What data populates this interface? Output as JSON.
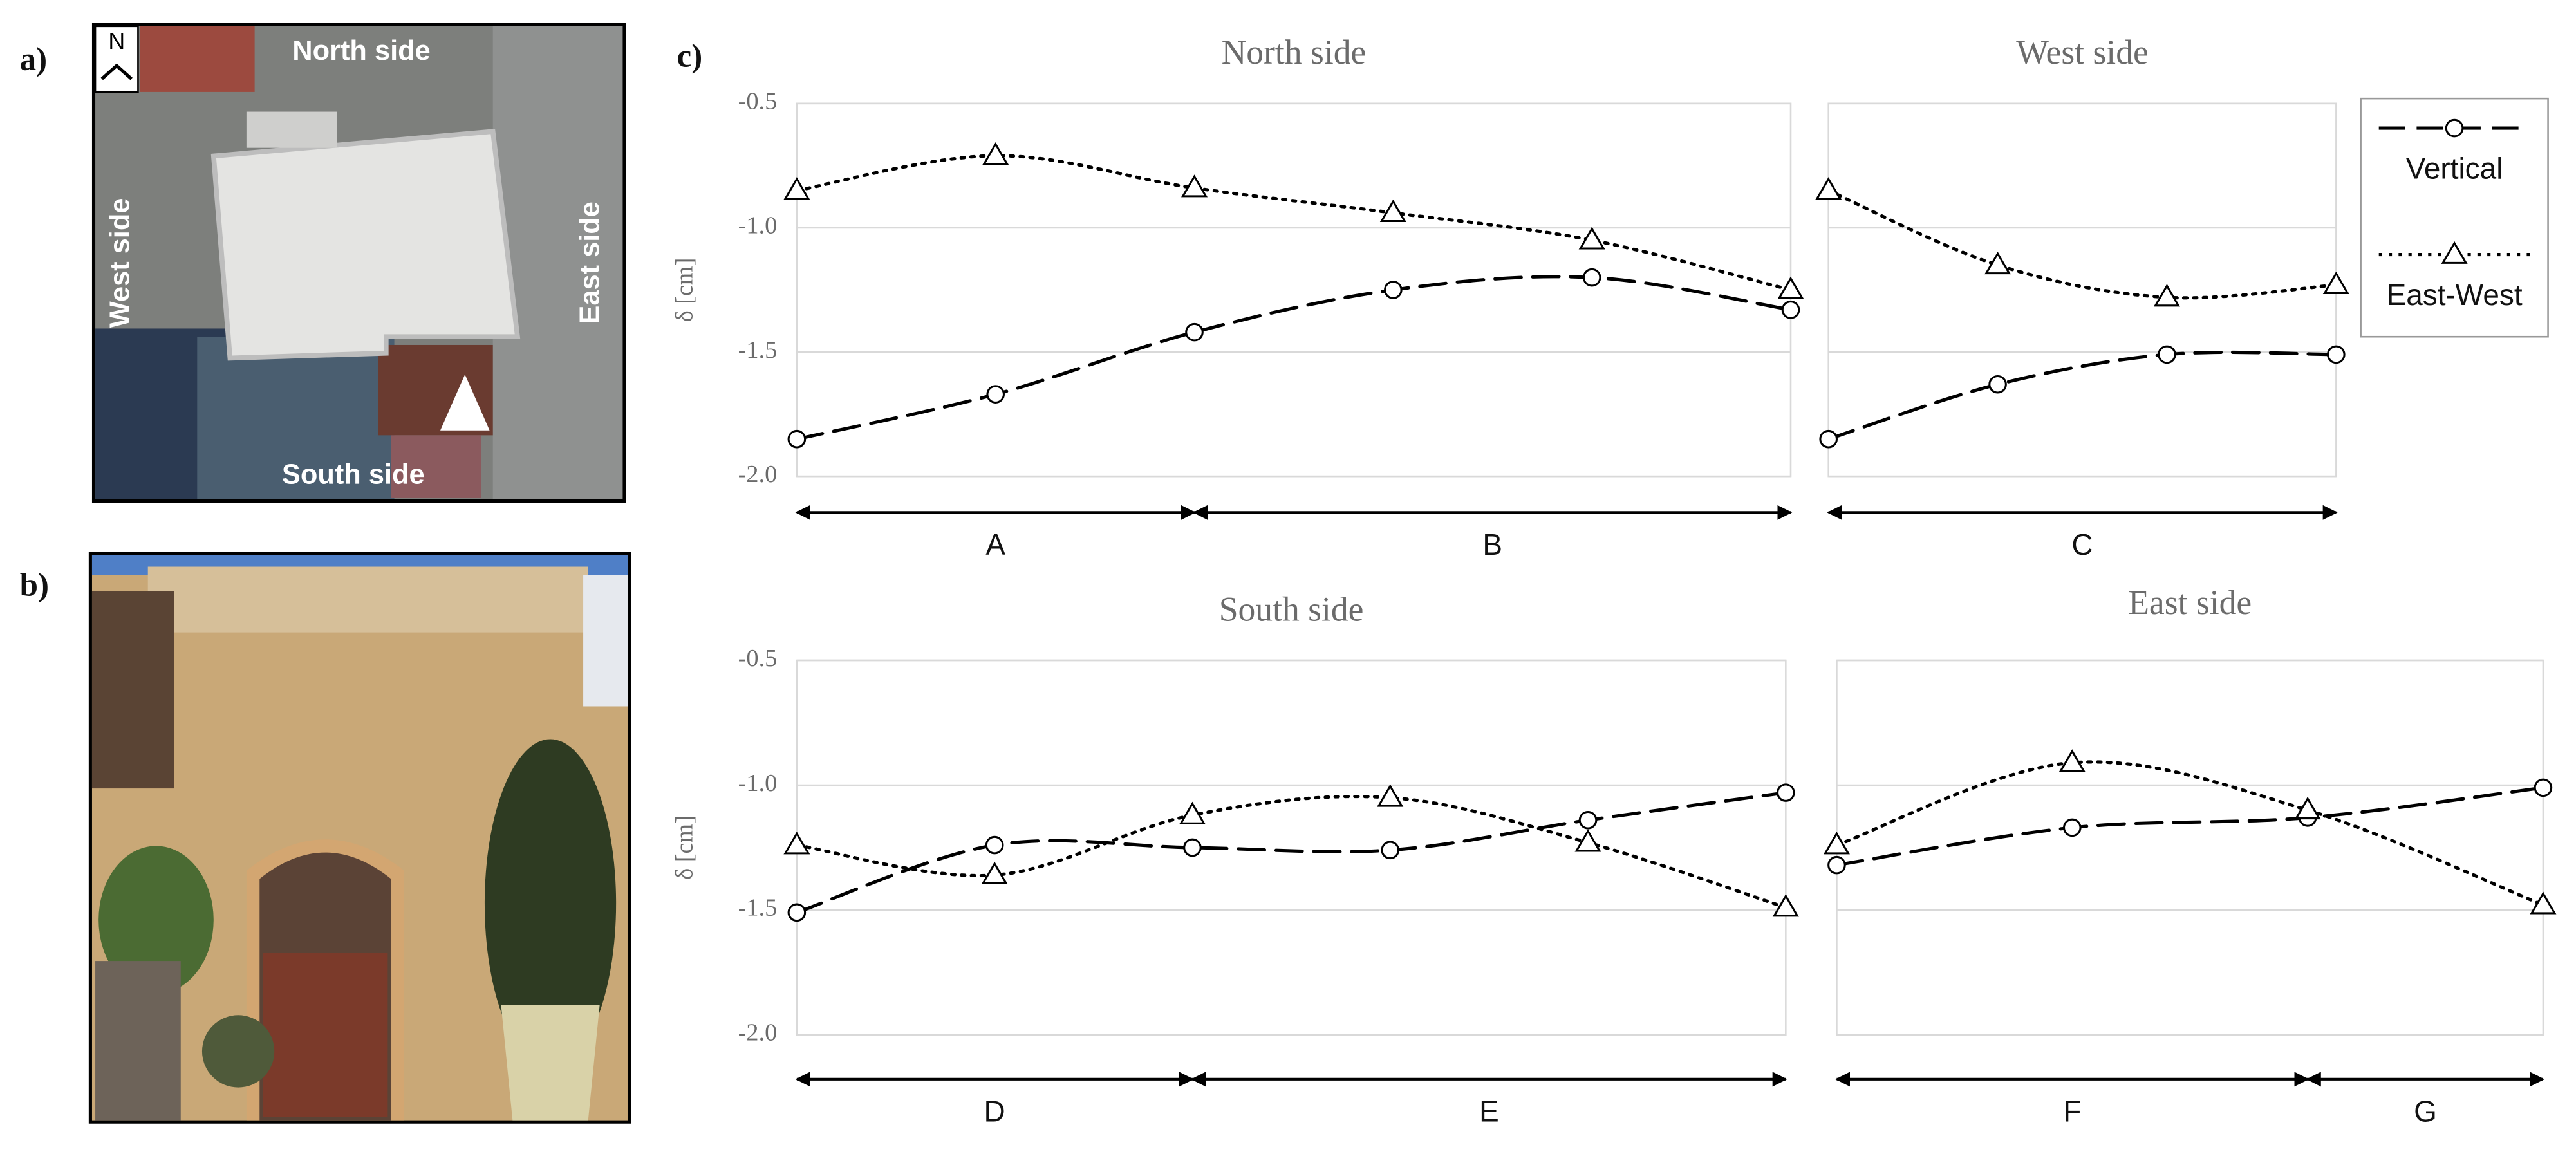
{
  "panel_labels": [
    "a)",
    "b)",
    "c)"
  ],
  "map_labels": {
    "north_arrow": "N",
    "north": "North side",
    "west": "West side",
    "east": "East side",
    "south": "South side"
  },
  "chart_data": [
    {
      "type": "line",
      "title": "North side",
      "ylabel": "δ [cm]",
      "ylim": [
        -2,
        -0.5
      ],
      "yticks": [
        -0.5,
        {
          "value": -1,
          "label": "-1.0"
        },
        -1.5,
        {
          "value": -2,
          "label": "-2.0"
        }
      ],
      "grid": true,
      "show_tick_labels": true,
      "categories": [
        null,
        null,
        null,
        null,
        null,
        null
      ],
      "segments": [
        "A",
        "B"
      ],
      "series": [
        {
          "color": "#000000",
          "style": "dashed",
          "marker": "circle",
          "values": [
            -1.85,
            -1.67,
            -1.42,
            -1.25,
            -1.2,
            -1.33
          ]
        },
        {
          "color": "#000000",
          "style": "dotted",
          "marker": "triangle",
          "values": [
            -0.85,
            -0.71,
            -0.84,
            -0.94,
            -1.05,
            -1.25
          ]
        }
      ]
    },
    {
      "type": "line",
      "title": "West side",
      "ylim": [
        -2,
        -0.5
      ],
      "yticks": [
        -0.5,
        -1,
        -1.5,
        -2
      ],
      "grid": true,
      "show_tick_labels": false,
      "legend": "right",
      "categories": [
        null,
        null,
        null,
        null
      ],
      "segments": [
        "C"
      ],
      "series": [
        {
          "name": "Vertical",
          "color": "#000000",
          "style": "dashed",
          "marker": "circle",
          "values": [
            -1.85,
            -1.63,
            -1.51,
            -1.51
          ]
        },
        {
          "name": "East-West",
          "color": "#000000",
          "style": "dotted",
          "marker": "triangle",
          "values": [
            -0.85,
            -1.15,
            -1.28,
            -1.23
          ]
        }
      ]
    },
    {
      "type": "line",
      "title": "South side",
      "ylabel": "δ [cm]",
      "ylim": [
        -2,
        -0.5
      ],
      "yticks": [
        -0.5,
        {
          "value": -1,
          "label": "-1.0"
        },
        -1.5,
        {
          "value": -2,
          "label": "-2.0"
        }
      ],
      "grid": true,
      "show_tick_labels": true,
      "categories": [
        null,
        null,
        null,
        null,
        null,
        null
      ],
      "segments": [
        "D",
        "E"
      ],
      "series": [
        {
          "color": "#000000",
          "style": "dashed",
          "marker": "circle",
          "values": [
            -1.51,
            -1.24,
            -1.25,
            -1.26,
            -1.14,
            -1.03
          ]
        },
        {
          "color": "#000000",
          "style": "dotted",
          "marker": "triangle",
          "values": [
            -1.24,
            -1.36,
            -1.12,
            -1.05,
            -1.23,
            -1.49
          ]
        }
      ]
    },
    {
      "type": "line",
      "title": "East side",
      "ylim": [
        -2,
        -0.5
      ],
      "yticks": [
        -0.5,
        -1,
        -1.5,
        -2
      ],
      "grid": true,
      "show_tick_labels": false,
      "categories": [
        null,
        null,
        null,
        null
      ],
      "segments": [
        "F",
        "G"
      ],
      "series": [
        {
          "color": "#000000",
          "style": "dashed",
          "marker": "circle",
          "values": [
            -1.32,
            -1.17,
            -1.13,
            -1.01
          ]
        },
        {
          "color": "#000000",
          "style": "dotted",
          "marker": "triangle",
          "values": [
            -1.24,
            -0.91,
            -1.1,
            -1.48
          ]
        }
      ]
    }
  ]
}
